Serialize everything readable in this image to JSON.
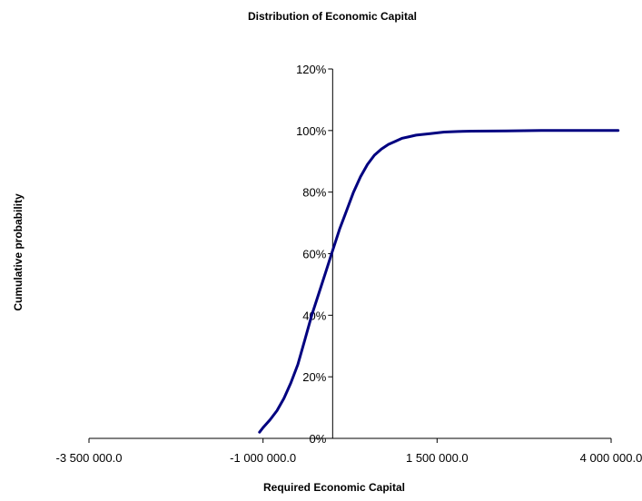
{
  "chart_data": {
    "type": "line",
    "title": "Distribution of Economic Capital",
    "xlabel": "Required Economic Capital",
    "ylabel": "Cumulative probability",
    "xlim": [
      -3500000,
      4000000
    ],
    "ylim": [
      0,
      1.2
    ],
    "x_ticks": [
      -3500000,
      -1000000,
      1500000,
      4000000
    ],
    "x_tick_labels": [
      "-3 500 000.0",
      "-1 000 000.0",
      "1 500 000.0",
      "4 000 000.0"
    ],
    "y_ticks": [
      0,
      0.2,
      0.4,
      0.6,
      0.8,
      1.0,
      1.2
    ],
    "y_tick_labels": [
      "0%",
      "20%",
      "40%",
      "60%",
      "80%",
      "100%",
      "120%"
    ],
    "grid": false,
    "legend": "none",
    "line_color": "#000080",
    "series": [
      {
        "x": [
          -1050000,
          -1000000,
          -900000,
          -800000,
          -700000,
          -600000,
          -500000,
          -400000,
          -300000,
          -200000,
          -100000,
          0,
          100000,
          200000,
          300000,
          400000,
          500000,
          600000,
          700000,
          800000,
          900000,
          1000000,
          1100000,
          1200000,
          1400000,
          1600000,
          1800000,
          2000000,
          2500000,
          3000000,
          3500000,
          4100000
        ],
        "y": [
          0.02,
          0.035,
          0.06,
          0.09,
          0.13,
          0.18,
          0.24,
          0.32,
          0.4,
          0.47,
          0.54,
          0.61,
          0.68,
          0.74,
          0.8,
          0.85,
          0.89,
          0.92,
          0.94,
          0.955,
          0.965,
          0.975,
          0.98,
          0.985,
          0.99,
          0.995,
          0.997,
          0.998,
          0.999,
          1.0,
          1.0,
          1.0
        ]
      }
    ]
  }
}
